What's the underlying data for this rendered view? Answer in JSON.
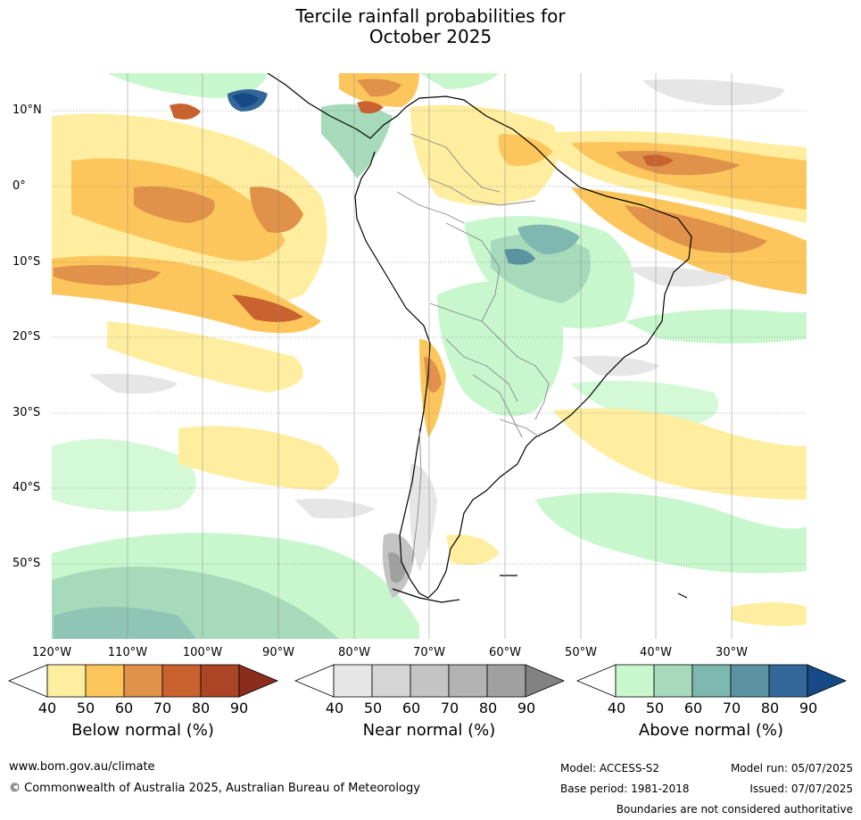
{
  "title": {
    "line1": "Tercile rainfall probabilities for",
    "line2": "October 2025"
  },
  "latitude_labels": [
    "10°N",
    "0°",
    "10°S",
    "20°S",
    "30°S",
    "40°S",
    "50°S"
  ],
  "longitude_labels": [
    "120°W",
    "110°W",
    "100°W",
    "90°W",
    "80°W",
    "70°W",
    "60°W",
    "50°W",
    "40°W",
    "30°W"
  ],
  "colorbars": [
    {
      "title": "Below normal (%)",
      "ticks": [
        "40",
        "50",
        "60",
        "70",
        "80",
        "90"
      ],
      "colors": [
        "#ffffff",
        "#ffeea0",
        "#fdc65c",
        "#e0914a",
        "#c9622f",
        "#ab4526",
        "#8b2d1d"
      ]
    },
    {
      "title": "Near normal (%)",
      "ticks": [
        "40",
        "50",
        "60",
        "70",
        "80",
        "90"
      ],
      "colors": [
        "#ffffff",
        "#e6e6e6",
        "#d5d5d5",
        "#c4c4c4",
        "#b3b3b3",
        "#a0a0a0",
        "#828282"
      ]
    },
    {
      "title": "Above normal (%)",
      "ticks": [
        "40",
        "50",
        "60",
        "70",
        "80",
        "90"
      ],
      "colors": [
        "#ffffff",
        "#c8f7cd",
        "#a7dabb",
        "#7fb8b0",
        "#5c93a2",
        "#33679a",
        "#154a86"
      ]
    }
  ],
  "footer": {
    "website": "www.bom.gov.au/climate",
    "copyright": "© Commonwealth of Australia 2025, Australian Bureau of Meteorology",
    "model": "Model: ACCESS-S2",
    "base_period": "Base period: 1981-2018",
    "model_run": "Model run: 05/07/2025",
    "issued": "Issued: 07/07/2025",
    "disclaimer": "Boundaries are not considered authoritative"
  }
}
